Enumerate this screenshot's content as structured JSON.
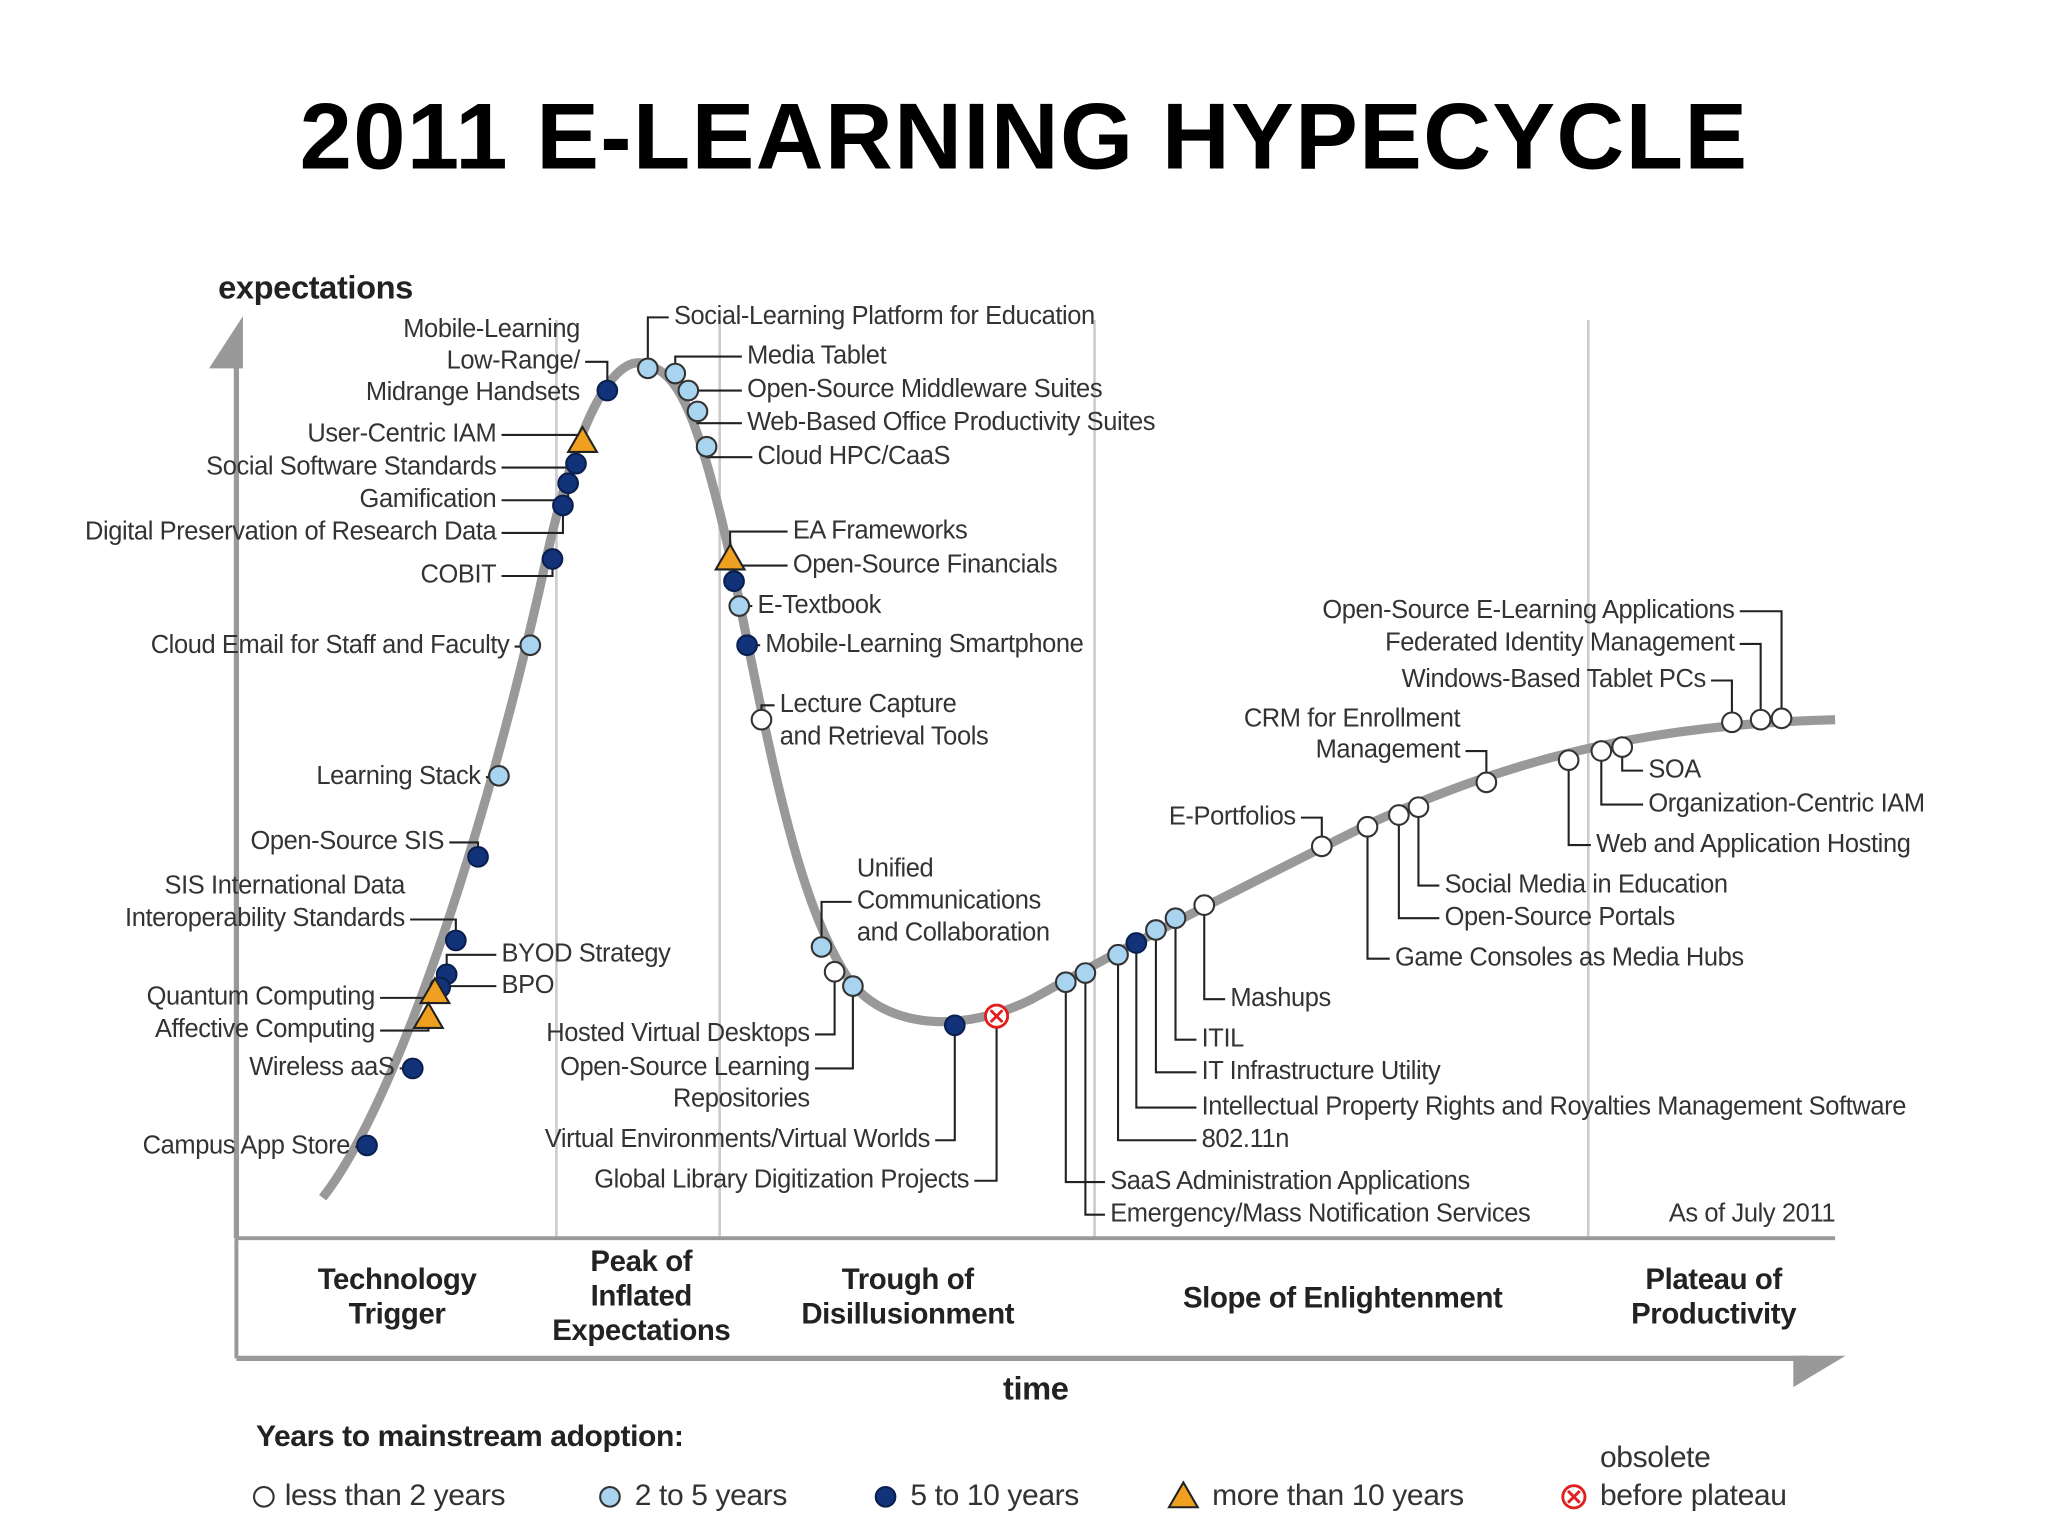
{
  "title": "2011 E-LEARNING HYPECYCLE",
  "y_axis_label": "expectations",
  "x_axis_label": "time",
  "note": "As of July 2011",
  "phases": [
    {
      "lines": [
        "Technology",
        "Trigger"
      ]
    },
    {
      "lines": [
        "Peak of",
        "Inflated",
        "Expectations"
      ]
    },
    {
      "lines": [
        "Trough of",
        "Disillusionment"
      ]
    },
    {
      "lines": [
        "Slope of Enlightenment"
      ]
    },
    {
      "lines": [
        "Plateau of",
        "Productivity"
      ]
    }
  ],
  "legend": {
    "title": "Years to mainstream adoption:",
    "items": [
      {
        "marker": "white",
        "lines": [
          "less than 2 years"
        ]
      },
      {
        "marker": "light",
        "lines": [
          "2 to 5 years"
        ]
      },
      {
        "marker": "dark",
        "lines": [
          "5 to 10 years"
        ]
      },
      {
        "marker": "triangle",
        "lines": [
          "more than 10 years"
        ]
      },
      {
        "marker": "obsolete",
        "lines": [
          "obsolete",
          "before plateau"
        ]
      }
    ]
  },
  "nodes": [
    {
      "marker": "dark",
      "lines": [
        "Mobile-Learning",
        "Low-Range/",
        "Midrange Handsets"
      ]
    },
    {
      "marker": "triangle",
      "lines": [
        "User-Centric IAM"
      ]
    },
    {
      "marker": "dark",
      "lines": [
        "Social Software Standards"
      ]
    },
    {
      "marker": "dark",
      "lines": [
        "Gamification"
      ]
    },
    {
      "marker": "dark",
      "lines": [
        "Digital Preservation of Research Data"
      ]
    },
    {
      "marker": "dark",
      "lines": [
        "COBIT"
      ]
    },
    {
      "marker": "light",
      "lines": [
        "Cloud Email for Staff and Faculty"
      ]
    },
    {
      "marker": "light",
      "lines": [
        "Learning Stack"
      ]
    },
    {
      "marker": "dark",
      "lines": [
        "Open-Source SIS"
      ]
    },
    {
      "marker": "dark",
      "lines": [
        "SIS International Data",
        "Interoperability Standards"
      ]
    },
    {
      "marker": "dark",
      "lines": [
        "BYOD Strategy"
      ]
    },
    {
      "marker": "dark",
      "lines": [
        "BPO"
      ]
    },
    {
      "marker": "triangle",
      "lines": [
        "Quantum Computing"
      ]
    },
    {
      "marker": "triangle",
      "lines": [
        "Affective Computing"
      ]
    },
    {
      "marker": "dark",
      "lines": [
        "Wireless aaS"
      ]
    },
    {
      "marker": "dark",
      "lines": [
        "Campus App Store"
      ]
    },
    {
      "marker": "light",
      "lines": [
        "Social-Learning Platform for Education"
      ]
    },
    {
      "marker": "light",
      "lines": [
        "Media Tablet"
      ]
    },
    {
      "marker": "light",
      "lines": [
        "Open-Source Middleware Suites"
      ]
    },
    {
      "marker": "light",
      "lines": [
        "Web-Based Office Productivity Suites"
      ]
    },
    {
      "marker": "light",
      "lines": [
        "Cloud HPC/CaaS"
      ]
    },
    {
      "marker": "triangle",
      "lines": [
        "EA Frameworks"
      ]
    },
    {
      "marker": "dark",
      "lines": [
        "Open-Source Financials"
      ]
    },
    {
      "marker": "light",
      "lines": [
        "E-Textbook"
      ]
    },
    {
      "marker": "dark",
      "lines": [
        "Mobile-Learning Smartphone"
      ]
    },
    {
      "marker": "white",
      "lines": [
        "Lecture Capture",
        "and Retrieval Tools"
      ]
    },
    {
      "marker": "light",
      "lines": [
        "Unified",
        "Communications",
        "and Collaboration"
      ]
    },
    {
      "marker": "white",
      "lines": [
        "Hosted Virtual Desktops"
      ]
    },
    {
      "marker": "light",
      "lines": [
        "Open-Source Learning",
        "Repositories"
      ]
    },
    {
      "marker": "dark",
      "lines": [
        "Virtual Environments/Virtual Worlds"
      ]
    },
    {
      "marker": "obsolete",
      "lines": [
        "Global Library Digitization Projects"
      ]
    },
    {
      "marker": "light",
      "lines": [
        "SaaS Administration Applications"
      ]
    },
    {
      "marker": "light",
      "lines": [
        "Emergency/Mass Notification Services"
      ]
    },
    {
      "marker": "light",
      "lines": [
        "802.11n"
      ]
    },
    {
      "marker": "dark",
      "lines": [
        "Intellectual Property Rights and Royalties Management Software"
      ]
    },
    {
      "marker": "light",
      "lines": [
        "IT Infrastructure Utility"
      ]
    },
    {
      "marker": "light",
      "lines": [
        "ITIL"
      ]
    },
    {
      "marker": "white",
      "lines": [
        "Mashups"
      ]
    },
    {
      "marker": "white",
      "lines": [
        "E-Portfolios"
      ]
    },
    {
      "marker": "white",
      "lines": [
        "Game Consoles as Media Hubs"
      ]
    },
    {
      "marker": "white",
      "lines": [
        "Open-Source Portals"
      ]
    },
    {
      "marker": "white",
      "lines": [
        "Social Media in Education"
      ]
    },
    {
      "marker": "white",
      "lines": [
        "CRM for Enrollment",
        "Management"
      ]
    },
    {
      "marker": "white",
      "lines": [
        "Web and Application Hosting"
      ]
    },
    {
      "marker": "white",
      "lines": [
        "Organization-Centric IAM"
      ]
    },
    {
      "marker": "white",
      "lines": [
        "SOA"
      ]
    },
    {
      "marker": "white",
      "lines": [
        "Windows-Based Tablet PCs"
      ]
    },
    {
      "marker": "white",
      "lines": [
        "Federated Identity Management"
      ]
    },
    {
      "marker": "white",
      "lines": [
        "Open-Source E-Learning Applications"
      ]
    }
  ]
}
